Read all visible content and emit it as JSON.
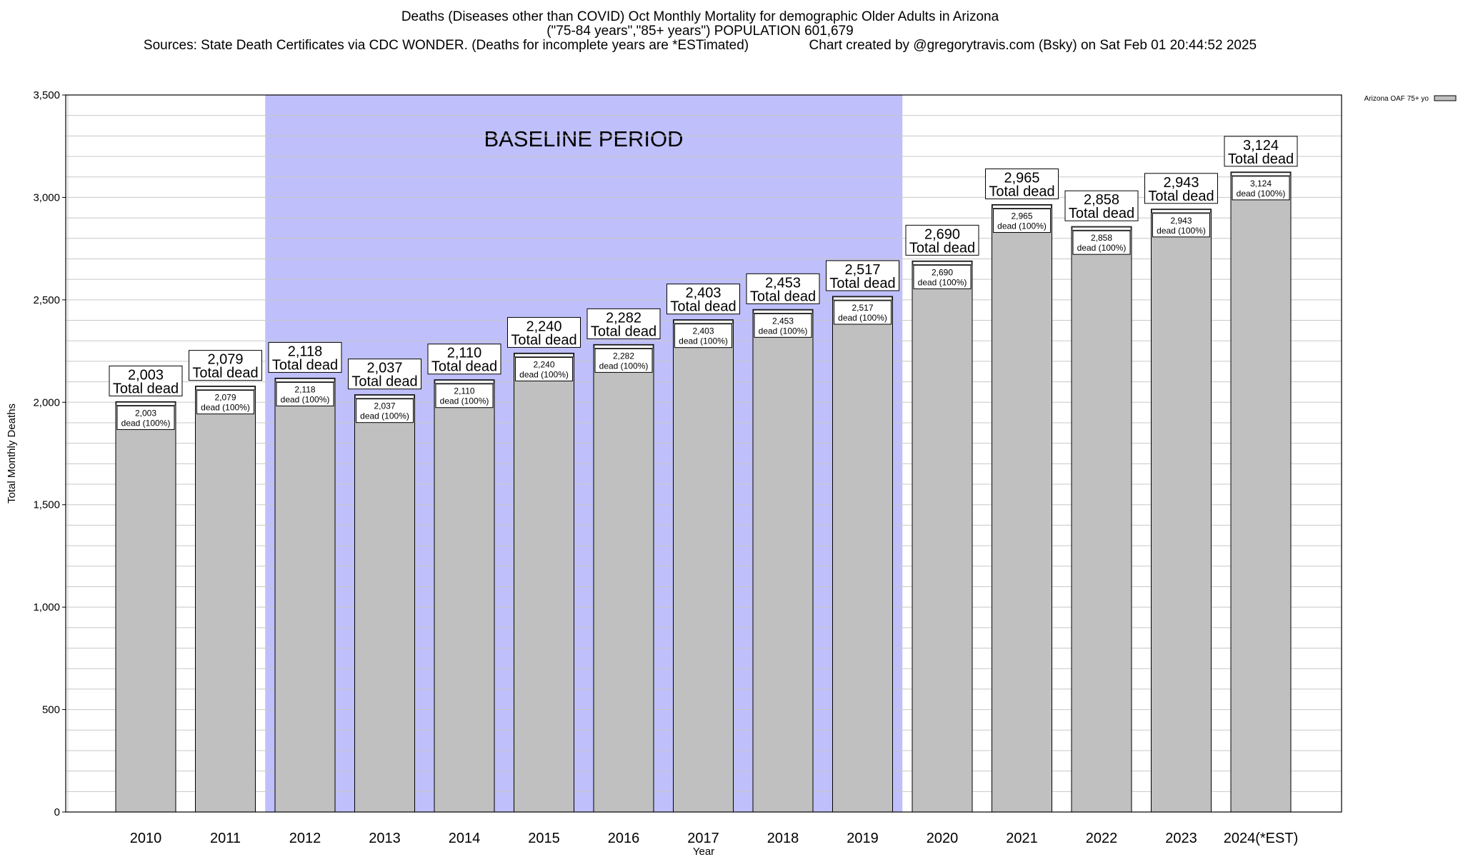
{
  "chart_data": {
    "type": "bar",
    "title_lines": [
      "Deaths (Diseases other than COVID) Oct Monthly Mortality for demographic Older Adults in Arizona",
      "(\"75-84 years\",\"85+ years\") POPULATION 601,679",
      "Sources: State Death Certificates via CDC WONDER. (Deaths for incomplete years are *ESTimated)                Chart created by @gregorytravis.com (Bsky) on Sat Feb 01 20:44:52 2025"
    ],
    "xlabel": "Year",
    "ylabel": "Total Monthly Deaths",
    "ylim": [
      0,
      3500
    ],
    "y_ticks": [
      "0",
      "500",
      "1,000",
      "1,500",
      "2,000",
      "2,500",
      "3,000",
      "3,500"
    ],
    "y_tick_values": [
      0,
      500,
      1000,
      1500,
      2000,
      2500,
      3000,
      3500
    ],
    "minor_grid_step": 100,
    "grid": true,
    "legend_placement": "top-right",
    "categories": [
      "2010",
      "2011",
      "2012",
      "2013",
      "2014",
      "2015",
      "2016",
      "2017",
      "2018",
      "2019",
      "2020",
      "2021",
      "2022",
      "2023",
      "2024(*EST)"
    ],
    "series": [
      {
        "name": "Arizona OAF 75+ yo",
        "values": [
          2003,
          2079,
          2118,
          2037,
          2110,
          2240,
          2282,
          2403,
          2453,
          2517,
          2690,
          2965,
          2858,
          2943,
          3124
        ],
        "color": "#c0c0c0"
      }
    ],
    "value_labels": [
      "2,003",
      "2,079",
      "2,118",
      "2,037",
      "2,110",
      "2,240",
      "2,282",
      "2,403",
      "2,453",
      "2,517",
      "2,690",
      "2,965",
      "2,858",
      "2,943",
      "3,124"
    ],
    "top_label_suffix": "Total dead",
    "inner_label_suffix": "dead (100%)",
    "annotation": {
      "text": "BASELINE PERIOD",
      "from_category": "2012",
      "to_category": "2019",
      "color": "#bfbffb"
    }
  }
}
